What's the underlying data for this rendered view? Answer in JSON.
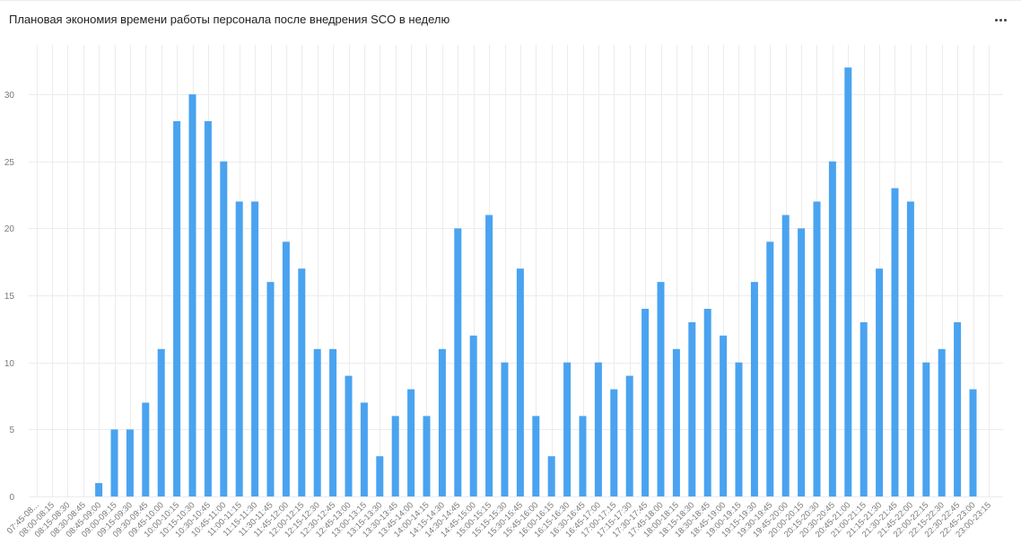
{
  "header": {
    "title": "Плановая экономия времени работы персонала после внедрения SCO в неделю",
    "menu_icon": "more-dots-icon"
  },
  "colors": {
    "bar": "#4aa3f0",
    "grid": "#ececec",
    "axis_text": "#7a7a7a"
  },
  "chart_data": {
    "type": "bar",
    "title": "Плановая экономия времени работы персонала после внедрения SCO в неделю",
    "xlabel": "",
    "ylabel": "",
    "ylim": [
      0,
      33
    ],
    "yticks": [
      0,
      5,
      10,
      15,
      20,
      25,
      30
    ],
    "grid": true,
    "categories": [
      "07:45-08:00",
      "08:00-08:15",
      "08:15-08:30",
      "08:30-08:45",
      "08:45-09:00",
      "09:00-09:15",
      "09:15-09:30",
      "09:30-09:45",
      "09:45-10:00",
      "10:00-10:15",
      "10:15-10:30",
      "10:30-10:45",
      "10:45-11:00",
      "11:00-11:15",
      "11:15-11:30",
      "11:30-11:45",
      "11:45-12:00",
      "12:00-12:15",
      "12:15-12:30",
      "12:30-12:45",
      "12:45-13:00",
      "13:00-13:15",
      "13:15-13:30",
      "13:30-13:45",
      "13:45-14:00",
      "14:00-14:15",
      "14:15-14:30",
      "14:30-14:45",
      "14:45-15:00",
      "15:00-15:15",
      "15:15-15:30",
      "15:30-15:45",
      "15:45-16:00",
      "16:00-16:15",
      "16:15-16:30",
      "16:30-16:45",
      "16:45-17:00",
      "17:00-17:15",
      "17:15-17:30",
      "17:30-17:45",
      "17:45-18:00",
      "18:00-18:15",
      "18:15-18:30",
      "18:30-18:45",
      "18:45-19:00",
      "19:00-19:15",
      "19:15-19:30",
      "19:30-19:45",
      "19:45-20:00",
      "20:00-20:15",
      "20:15-20:30",
      "20:30-20:45",
      "20:45-21:00",
      "21:00-21:15",
      "21:15-21:30",
      "21:30-21:45",
      "21:45-22:00",
      "22:00-22:15",
      "22:15-22:30",
      "22:30-22:45",
      "22:45-23:00",
      "23:00-23:15"
    ],
    "category_labels": [
      "07:45-08...",
      "08:00-08:15",
      "08:15-08:30",
      "08:30-08:45",
      "08:45-09:00",
      "09:00-09:15",
      "09:15-09:30",
      "09:30-09:45",
      "09:45-10:00",
      "10:00-10:15",
      "10:15-10:30",
      "10:30-10:45",
      "10:45-11:00",
      "11:00-11:15",
      "11:15-11:30",
      "11:30-11:45",
      "11:45-12:00",
      "12:00-12:15",
      "12:15-12:30",
      "12:30-12:45",
      "12:45-13:00",
      "13:00-13:15",
      "13:15-13:30",
      "13:30-13:45",
      "13:45-14:00",
      "14:00-14:15",
      "14:15-14:30",
      "14:30-14:45",
      "14:45-15:00",
      "15:00-15:15",
      "15:15-15:30",
      "15:30-15:45",
      "15:45-16:00",
      "16:00-16:15",
      "16:15-16:30",
      "16:30-16:45",
      "16:45-17:00",
      "17:00-17:15",
      "17:15-17:30",
      "17:30-17:45",
      "17:45-18:00",
      "18:00-18:15",
      "18:15-18:30",
      "18:30-18:45",
      "18:45-19:00",
      "19:00-19:15",
      "19:15-19:30",
      "19:30-19:45",
      "19:45-20:00",
      "20:00-20:15",
      "20:15-20:30",
      "20:30-20:45",
      "20:45-21:00",
      "21:00-21:15",
      "21:15-21:30",
      "21:30-21:45",
      "21:45-22:00",
      "22:00-22:15",
      "22:15-22:30",
      "22:30-22:45",
      "22:45-23:00",
      "23:00-23:15"
    ],
    "values": [
      0,
      0,
      0,
      0,
      1,
      5,
      5,
      7,
      11,
      28,
      30,
      28,
      25,
      22,
      22,
      16,
      19,
      17,
      11,
      11,
      9,
      7,
      3,
      6,
      8,
      6,
      11,
      20,
      12,
      21,
      10,
      17,
      6,
      3,
      10,
      6,
      10,
      8,
      9,
      14,
      16,
      11,
      13,
      14,
      12,
      10,
      16,
      19,
      21,
      20,
      22,
      25,
      32,
      13,
      17,
      23,
      22,
      10,
      11,
      13,
      8,
      0
    ]
  }
}
